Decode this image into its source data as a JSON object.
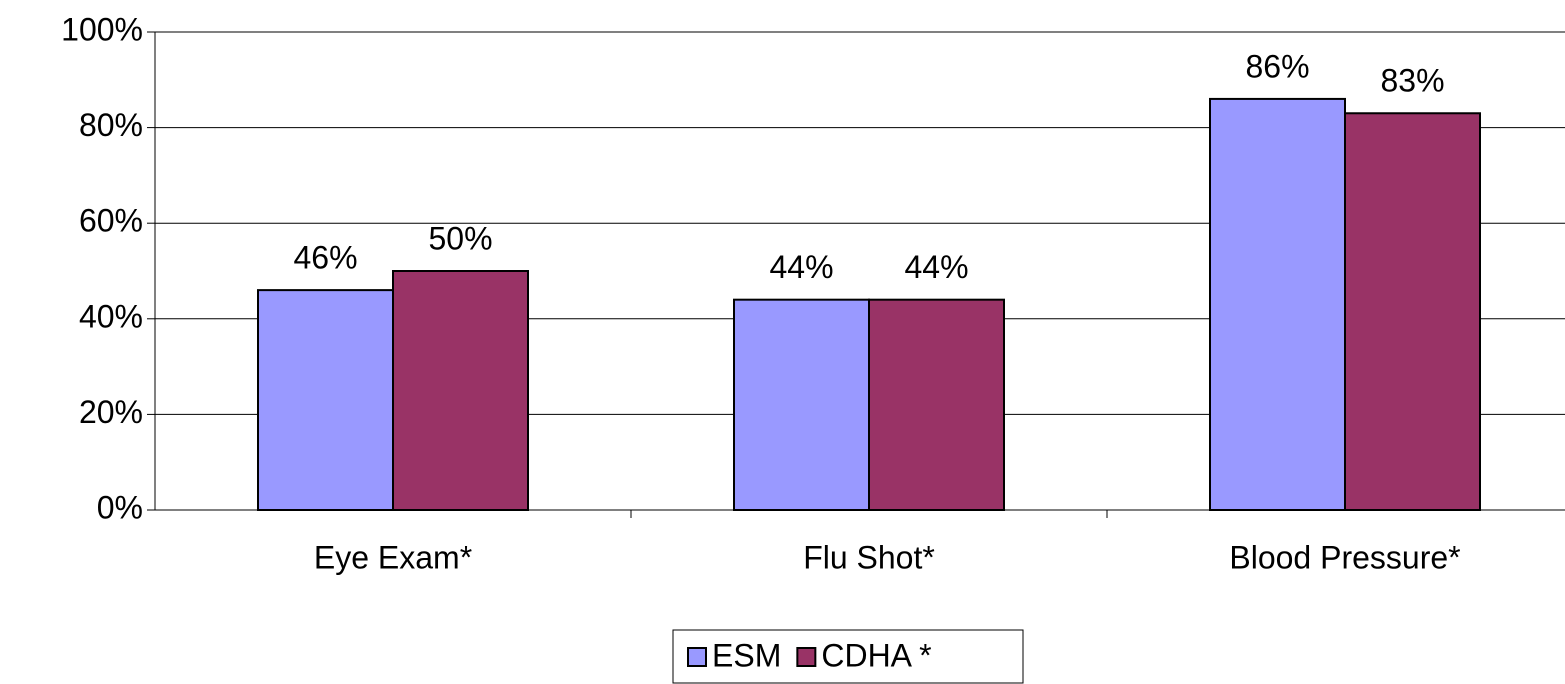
{
  "chart_data": {
    "type": "bar",
    "categories": [
      "Eye Exam*",
      "Flu Shot*",
      "Blood Pressure*"
    ],
    "series": [
      {
        "name": "ESM",
        "color": "#9999ff",
        "values": [
          46,
          44,
          86
        ],
        "value_labels": [
          "46%",
          "44%",
          "86%"
        ]
      },
      {
        "name": "CDHA *",
        "color": "#993366",
        "values": [
          50,
          44,
          83
        ],
        "value_labels": [
          "50%",
          "44%",
          "83%"
        ]
      }
    ],
    "ylim": [
      0,
      100
    ],
    "yticks": [
      {
        "value": 0,
        "label": "0%"
      },
      {
        "value": 20,
        "label": "20%"
      },
      {
        "value": 40,
        "label": "40%"
      },
      {
        "value": 60,
        "label": "60%"
      },
      {
        "value": 80,
        "label": "80%"
      },
      {
        "value": 100,
        "label": "100%"
      }
    ],
    "grid": true,
    "legend": "bottom"
  }
}
